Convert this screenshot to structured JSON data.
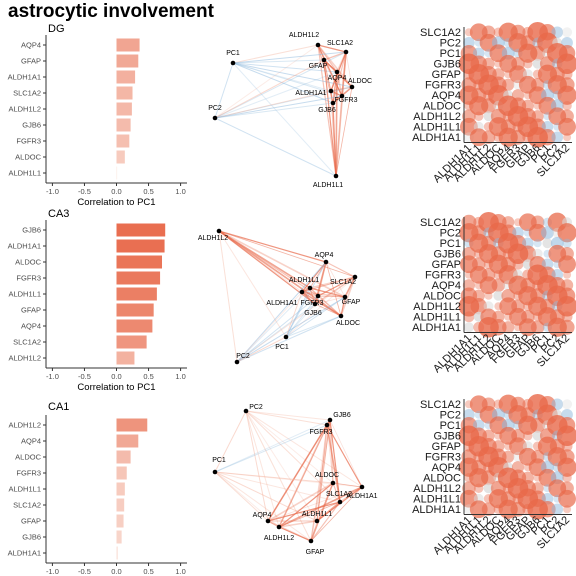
{
  "title": "astrocytic involvement",
  "colors": {
    "positive": "#e8694a",
    "negative": "#8db8dc",
    "node": "#000000",
    "axis": "#333333"
  },
  "chart_data": [
    {
      "type": "bar",
      "region": "DG",
      "orientation": "horizontal",
      "categories": [
        "AQP4",
        "GFAP",
        "ALDH1A1",
        "SLC1A2",
        "ALDH1L2",
        "GJB6",
        "FGFR3",
        "ALDOC",
        "ALDH1L1"
      ],
      "values": [
        0.36,
        0.34,
        0.29,
        0.25,
        0.24,
        0.22,
        0.2,
        0.13,
        0.0
      ],
      "xlabel": "Correlation to PC1",
      "xlim": [
        -1.1,
        1.1
      ],
      "xticks": [
        "-1.0",
        "-0.5",
        "0.0",
        "0.5",
        "1.0"
      ]
    },
    {
      "type": "network",
      "region": "DG",
      "nodes": [
        "ALDH1L2",
        "SLC1A2",
        "PC1",
        "GFAP",
        "AQP4",
        "ALDOC",
        "ALDH1A1",
        "FGFR3",
        "PC2",
        "GJB6",
        "ALDH1L1"
      ]
    },
    {
      "type": "heatmap",
      "region": "DG",
      "rows": [
        "SLC1A2",
        "PC2",
        "PC1",
        "GJB6",
        "GFAP",
        "FGFR3",
        "AQP4",
        "ALDOC",
        "ALDH1L2",
        "ALDH1L1",
        "ALDH1A1"
      ],
      "columns": [
        "ALDH1A1",
        "ALDH1L1",
        "ALDH1L2",
        "ALDOC",
        "AQP4",
        "FGFR3",
        "GFAP",
        "GJB6",
        "PC1",
        "PC2",
        "SLC1A2"
      ]
    },
    {
      "type": "bar",
      "region": "CA3",
      "orientation": "horizontal",
      "categories": [
        "GJB6",
        "ALDH1A1",
        "ALDOC",
        "FGFR3",
        "ALDH1L1",
        "GFAP",
        "AQP4",
        "SLC1A2",
        "ALDH1L2"
      ],
      "values": [
        0.76,
        0.75,
        0.71,
        0.68,
        0.63,
        0.58,
        0.56,
        0.47,
        0.28
      ],
      "xlabel": "Correlation to PC1",
      "xlim": [
        -1.1,
        1.1
      ],
      "xticks": [
        "-1.0",
        "-0.5",
        "0.0",
        "0.5",
        "1.0"
      ]
    },
    {
      "type": "network",
      "region": "CA3",
      "nodes": [
        "ALDH1L2",
        "AQP4",
        "ALDH1L1",
        "SLC1A2",
        "FGFR3",
        "GFAP",
        "ALDH1A1",
        "GJB6",
        "ALDOC",
        "PC1",
        "PC2"
      ]
    },
    {
      "type": "heatmap",
      "region": "CA3",
      "rows": [
        "SLC1A2",
        "PC2",
        "PC1",
        "GJB6",
        "GFAP",
        "FGFR3",
        "AQP4",
        "ALDOC",
        "ALDH1L2",
        "ALDH1L1",
        "ALDH1A1"
      ],
      "columns": [
        "ALDH1A1",
        "ALDH1L1",
        "ALDH1L2",
        "ALDOC",
        "AQP4",
        "FGFR3",
        "GFAP",
        "GJB6",
        "PC1",
        "PC2",
        "SLC1A2"
      ]
    },
    {
      "type": "bar",
      "region": "CA1",
      "orientation": "horizontal",
      "categories": [
        "ALDH1L2",
        "AQP4",
        "ALDOC",
        "FGFR3",
        "ALDH1L1",
        "SLC1A2",
        "GFAP",
        "GJB6",
        "ALDH1A1"
      ],
      "values": [
        0.48,
        0.34,
        0.22,
        0.16,
        0.13,
        0.12,
        0.11,
        0.08,
        0.02
      ],
      "xlabel": "Correlation to PC1",
      "xlim": [
        -1.1,
        1.1
      ],
      "xticks": [
        "-1.0",
        "-0.5",
        "0.0",
        "0.5",
        "1.0"
      ]
    },
    {
      "type": "network",
      "region": "CA1",
      "nodes": [
        "PC2",
        "GJB6",
        "FGFR3",
        "PC1",
        "ALDOC",
        "ALDH1A1",
        "SLC1A2",
        "AQP4",
        "ALDH1L1",
        "ALDH1L2",
        "GFAP"
      ]
    },
    {
      "type": "heatmap",
      "region": "CA1",
      "rows": [
        "SLC1A2",
        "PC2",
        "PC1",
        "GJB6",
        "GFAP",
        "FGFR3",
        "AQP4",
        "ALDOC",
        "ALDH1L2",
        "ALDH1L1",
        "ALDH1A1"
      ],
      "columns": [
        "ALDH1A1",
        "ALDH1L1",
        "ALDH1L2",
        "ALDOC",
        "AQP4",
        "FGFR3",
        "GFAP",
        "GJB6",
        "PC1",
        "PC2",
        "SLC1A2"
      ]
    }
  ]
}
